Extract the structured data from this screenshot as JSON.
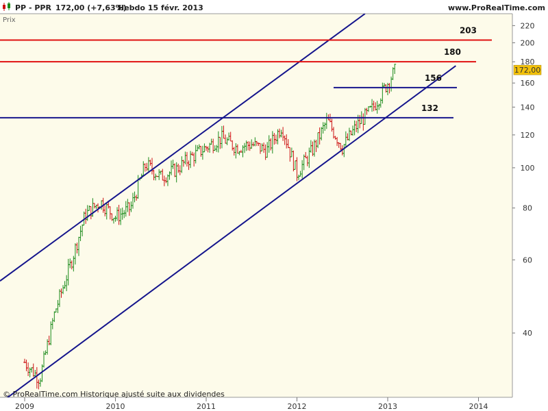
{
  "header": {
    "symbol": "PP - PPR",
    "last_change": "172,00 (+7,63%)",
    "period_date": "Hebdo  15 févr. 2013",
    "site": "www.ProRealTime.com"
  },
  "panel_label": "Prix",
  "footer": "© ProRealTime.com  Historique ajusté suite aux dividendes",
  "colors": {
    "background": "#fdfbea",
    "up_bar": "#1a8a1a",
    "down_bar": "#cc1111",
    "channel": "#14148c",
    "resistance": "#e01010",
    "price_tag": "#f3c10a"
  },
  "chart_data": {
    "type": "ohlc",
    "y_scale": "log",
    "ylim": [
      28,
      235
    ],
    "y_ticks": [
      40,
      60,
      80,
      100,
      120,
      140,
      160,
      180,
      200,
      220
    ],
    "x_labels": [
      "2009",
      "2010",
      "2011",
      "2012",
      "2013",
      "2014"
    ],
    "last_price_label": "172,00",
    "last_price": 172.0,
    "weekly_closes": [
      {
        "date": "2009-01",
        "close": 34
      },
      {
        "date": "2009-03",
        "close": 31
      },
      {
        "date": "2009-05",
        "close": 45
      },
      {
        "date": "2009-07",
        "close": 58
      },
      {
        "date": "2009-09",
        "close": 77
      },
      {
        "date": "2009-11",
        "close": 83
      },
      {
        "date": "2010-01",
        "close": 76
      },
      {
        "date": "2010-03",
        "close": 80
      },
      {
        "date": "2010-05",
        "close": 102
      },
      {
        "date": "2010-07",
        "close": 95
      },
      {
        "date": "2010-09",
        "close": 99
      },
      {
        "date": "2010-11",
        "close": 106
      },
      {
        "date": "2011-01",
        "close": 112
      },
      {
        "date": "2011-03",
        "close": 118
      },
      {
        "date": "2011-05",
        "close": 112
      },
      {
        "date": "2011-07",
        "close": 114
      },
      {
        "date": "2011-09",
        "close": 110
      },
      {
        "date": "2011-11",
        "close": 126
      },
      {
        "date": "2012-01",
        "close": 97
      },
      {
        "date": "2012-03",
        "close": 110
      },
      {
        "date": "2012-05",
        "close": 130
      },
      {
        "date": "2012-07",
        "close": 112
      },
      {
        "date": "2012-09",
        "close": 127
      },
      {
        "date": "2012-11",
        "close": 139
      },
      {
        "date": "2013-01",
        "close": 160
      },
      {
        "date": "2013-02",
        "close": 172
      }
    ],
    "horizontal_lines": [
      {
        "value": 203,
        "label": "203",
        "color": "red"
      },
      {
        "value": 180,
        "label": "180",
        "color": "red"
      },
      {
        "value": 156,
        "label": "156",
        "color": "blue"
      },
      {
        "value": 132,
        "label": "132",
        "color": "blue"
      }
    ],
    "channel_lines": [
      {
        "name": "upper",
        "from": {
          "date": "2009-01",
          "price": 59
        },
        "to": {
          "date": "2012-10",
          "price": 235
        }
      },
      {
        "name": "lower",
        "from": {
          "date": "2009-01",
          "price": 30
        },
        "to": {
          "date": "2013-10",
          "price": 176
        }
      }
    ]
  }
}
